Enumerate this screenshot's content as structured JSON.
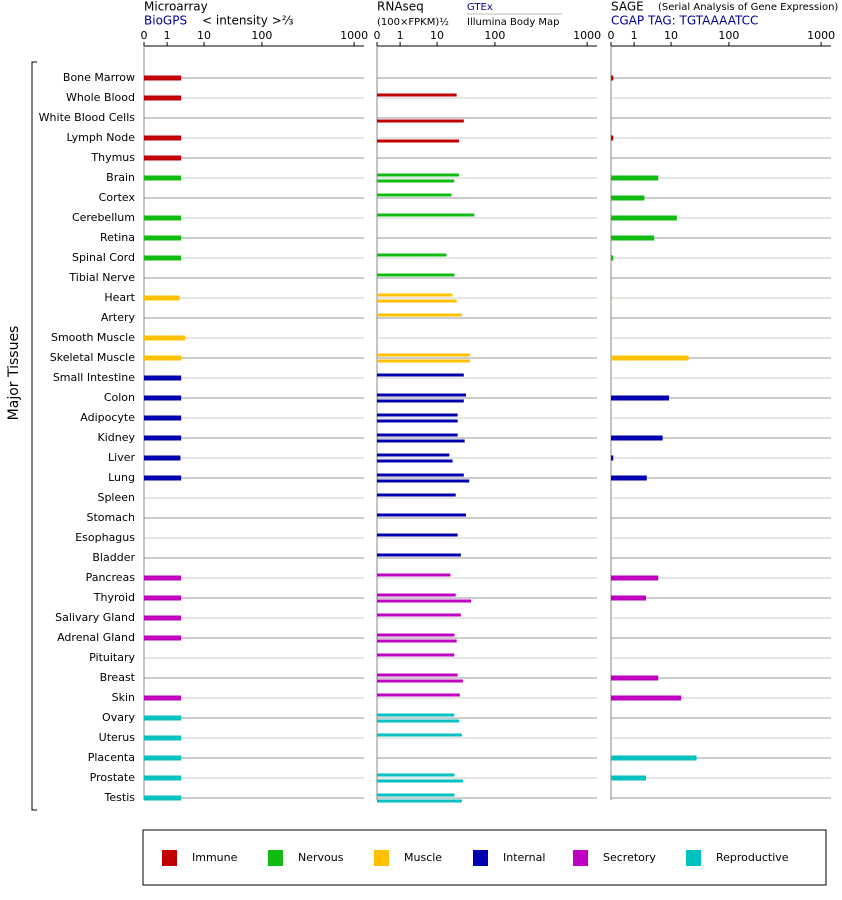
{
  "chart_data": [
    {
      "type": "bar",
      "orientation": "horizontal",
      "title": "Microarray",
      "subtitle": "< intensity >⅔",
      "ylabel": "Major Tissues",
      "categories": [
        "Bone Marrow",
        "Whole Blood",
        "White Blood Cells",
        "Lymph Node",
        "Thymus",
        "Brain",
        "Cortex",
        "Cerebellum",
        "Retina",
        "Spinal Cord",
        "Tibial Nerve",
        "Heart",
        "Artery",
        "Smooth Muscle",
        "Skeletal Muscle",
        "Small Intestine",
        "Colon",
        "Adipocyte",
        "Kidney",
        "Liver",
        "Lung",
        "Spleen",
        "Stomach",
        "Esophagus",
        "Bladder",
        "Pancreas",
        "Thyroid",
        "Salivary Gland",
        "Adrenal Gland",
        "Pituitary",
        "Breast",
        "Skin",
        "Ovary",
        "Uterus",
        "Placenta",
        "Prostate",
        "Testis"
      ],
      "category_colors": [
        "#c00000",
        "#c00000",
        "#c00000",
        "#c00000",
        "#c00000",
        "#11bb11",
        "#11bb11",
        "#11bb11",
        "#11bb11",
        "#11bb11",
        "#11bb11",
        "#ffc000",
        "#ffc000",
        "#ffc000",
        "#ffc000",
        "#0000b0",
        "#0000b0",
        "#0000b0",
        "#0000b0",
        "#0000b0",
        "#0000b0",
        "#0000b0",
        "#0000b0",
        "#0000b0",
        "#0000b0",
        "#c000c0",
        "#c000c0",
        "#c000c0",
        "#c000c0",
        "#c000c0",
        "#c000c0",
        "#c000c0",
        "#00c0c0",
        "#00c0c0",
        "#00c0c0",
        "#00c0c0",
        "#00c0c0"
      ],
      "legend": [
        {
          "name": "Immune",
          "color": "#c00000"
        },
        {
          "name": "Nervous",
          "color": "#11bb11"
        },
        {
          "name": "Muscle",
          "color": "#ffc000"
        },
        {
          "name": "Internal",
          "color": "#0000b0"
        },
        {
          "name": "Secretory",
          "color": "#c000c0"
        },
        {
          "name": "Reproductive",
          "color": "#00c0c0"
        }
      ],
      "series": [
        {
          "name": "BioGPS",
          "values": [
            2.4,
            2.4,
            null,
            2.4,
            2.4,
            2.4,
            null,
            2.4,
            2.4,
            2.4,
            null,
            2.2,
            null,
            3.1,
            2.4,
            2.4,
            2.4,
            2.4,
            2.4,
            2.3,
            2.4,
            null,
            null,
            null,
            null,
            2.4,
            2.4,
            2.4,
            2.4,
            null,
            null,
            2.4,
            2.4,
            2.4,
            2.4,
            2.4,
            2.4
          ]
        }
      ],
      "xlim": [
        0,
        1000
      ],
      "xticks": [
        0,
        1,
        10,
        100,
        1000
      ]
    },
    {
      "type": "bar",
      "orientation": "horizontal",
      "title": "RNAseq",
      "subtitle": "(100×FPKM)½",
      "series": [
        {
          "name": "GTEx",
          "values": [
            null,
            21.8,
            null,
            null,
            null,
            24,
            17.8,
            44,
            null,
            14.5,
            20,
            18.5,
            26.8,
            null,
            37,
            29,
            31.6,
            22.7,
            22.7,
            16.3,
            29,
            21,
            31.6,
            22.7,
            25.8,
            17,
            21,
            25.8,
            20,
            19.8,
            22.7,
            24.7,
            19.8,
            26.8,
            null,
            20,
            20
          ]
        },
        {
          "name": "Illumina Body Map",
          "values": [
            null,
            null,
            29,
            24,
            null,
            19.8,
            null,
            null,
            null,
            null,
            null,
            21.8,
            null,
            null,
            37,
            null,
            29,
            22.7,
            30,
            18.5,
            36,
            null,
            null,
            null,
            null,
            null,
            38.8,
            null,
            21.8,
            null,
            28,
            null,
            24,
            null,
            null,
            28,
            26.8
          ]
        }
      ],
      "xlim": [
        0,
        1000
      ],
      "xticks": [
        0,
        1,
        10,
        100,
        1000
      ]
    },
    {
      "type": "bar",
      "orientation": "horizontal",
      "title": "SAGE",
      "subtitle": "(Serial Analysis of Gene Expression)",
      "series": [
        {
          "name": "CGAP TAG: TGTAAAATCC",
          "values": [
            0.1,
            null,
            null,
            0.1,
            null,
            4.5,
            1.9,
            12.6,
            3.5,
            0.1,
            null,
            0.05,
            null,
            null,
            20,
            null,
            8.8,
            null,
            5.9,
            0.1,
            2.2,
            null,
            null,
            null,
            null,
            4.5,
            2.1,
            null,
            null,
            null,
            4.5,
            15,
            null,
            null,
            27.6,
            2.1,
            null
          ]
        }
      ],
      "xlim": [
        0,
        1000
      ],
      "xticks": [
        0,
        1,
        10,
        100,
        1000
      ]
    }
  ]
}
